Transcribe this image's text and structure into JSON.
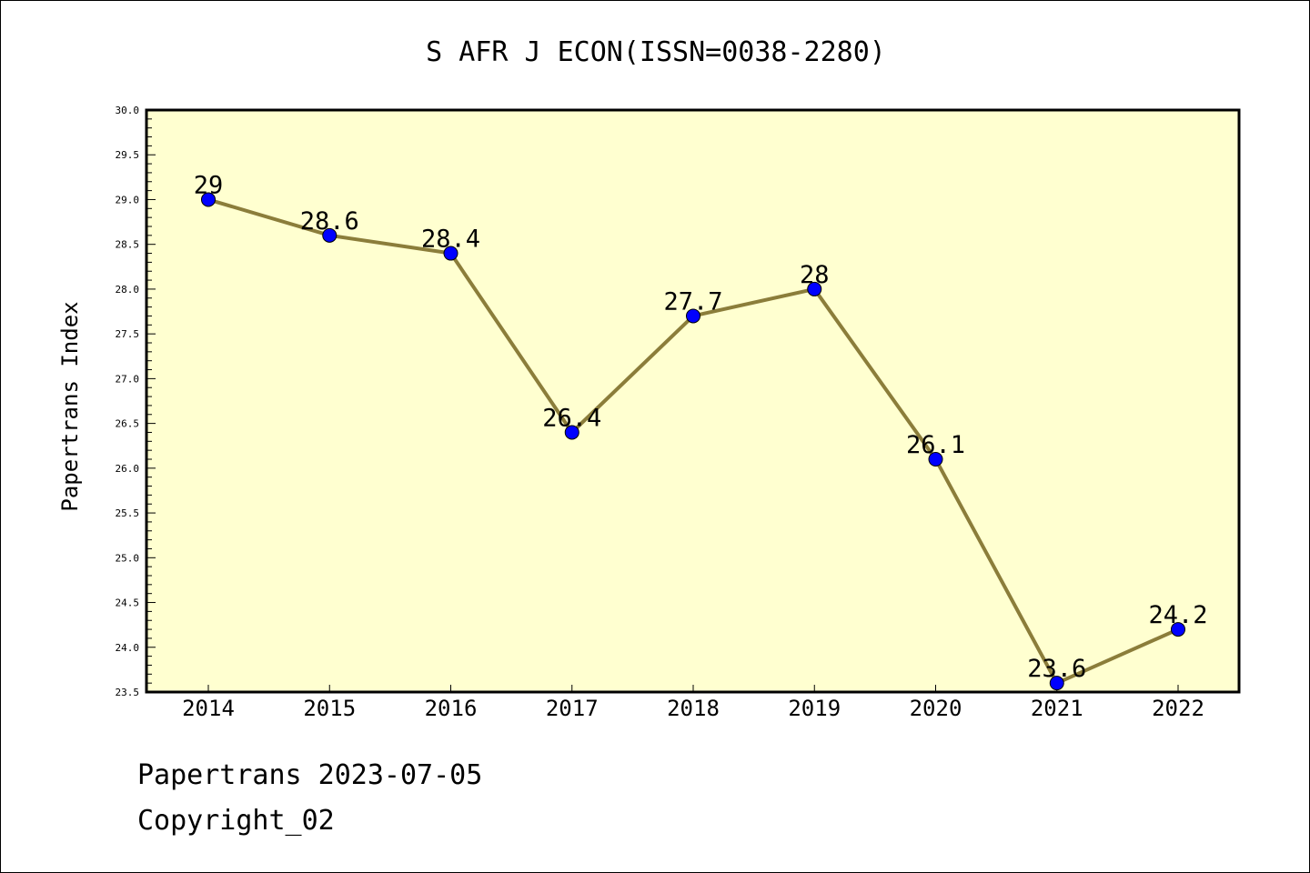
{
  "chart_data": {
    "type": "line",
    "title": "S AFR J ECON(ISSN=0038-2280)",
    "xlabel": "",
    "ylabel": "Papertrans Index",
    "categories": [
      "2014",
      "2015",
      "2016",
      "2017",
      "2018",
      "2019",
      "2020",
      "2021",
      "2022"
    ],
    "series": [
      {
        "values": [
          29,
          28.6,
          28.4,
          26.4,
          27.7,
          28,
          26.1,
          23.6,
          24.2
        ]
      }
    ],
    "data_labels": [
      "29",
      "28.6",
      "28.4",
      "26.4",
      "27.7",
      "28",
      "26.1",
      "23.6",
      "24.2"
    ],
    "ylim": [
      23.5,
      30.0
    ],
    "y_ticks": [
      "23.5",
      "24.0",
      "24.5",
      "25.0",
      "25.5",
      "26.0",
      "26.5",
      "27.0",
      "27.5",
      "28.0",
      "28.5",
      "29.0",
      "29.5",
      "30.0"
    ],
    "grid": false,
    "colors": {
      "plot_background": "#ffffd0",
      "line": "#8b7d3a",
      "marker": "#0000ff"
    }
  },
  "footer": {
    "line1": "Papertrans 2023-07-05",
    "line2": "Copyright_02"
  }
}
